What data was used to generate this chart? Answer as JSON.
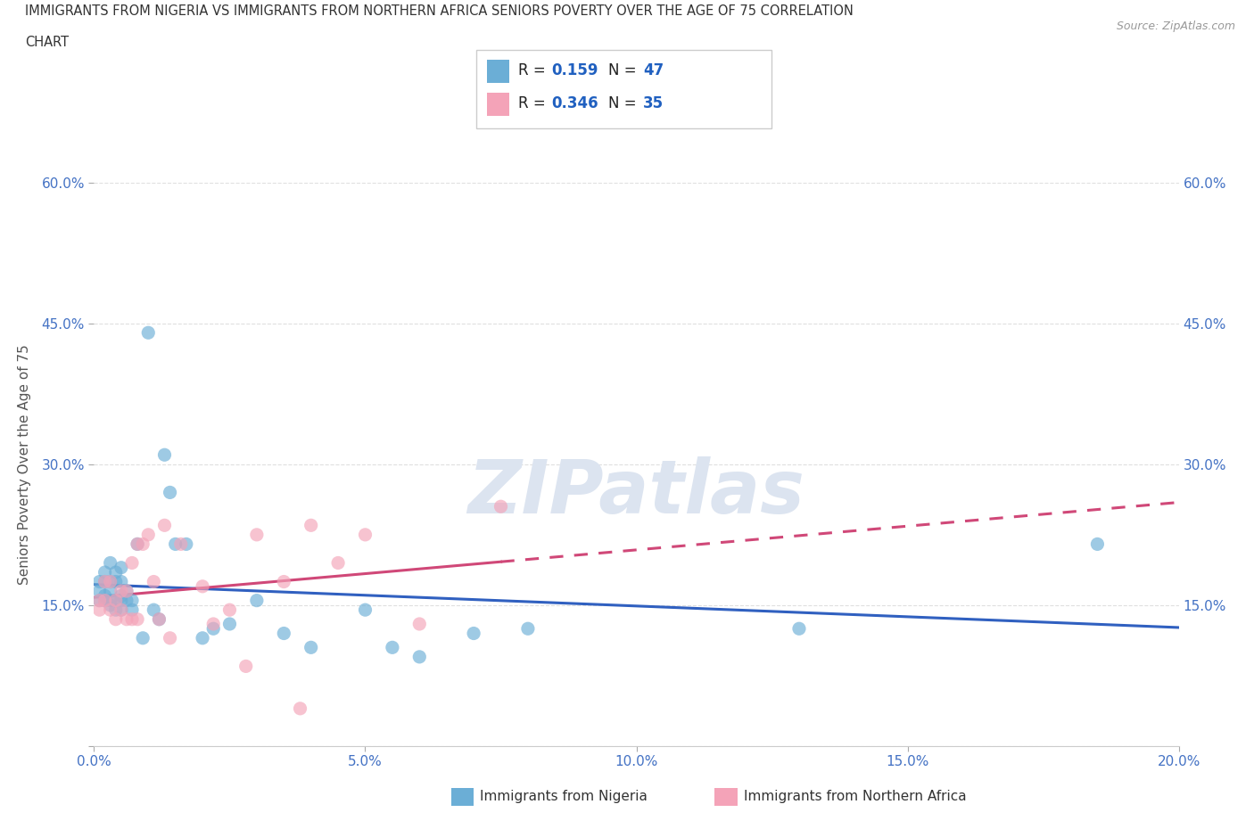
{
  "title_line1": "IMMIGRANTS FROM NIGERIA VS IMMIGRANTS FROM NORTHERN AFRICA SENIORS POVERTY OVER THE AGE OF 75 CORRELATION",
  "title_line2": "CHART",
  "source_text": "Source: ZipAtlas.com",
  "ylabel": "Seniors Poverty Over the Age of 75",
  "r_nigeria": 0.159,
  "n_nigeria": 47,
  "r_n_africa": 0.346,
  "n_n_africa": 35,
  "color_nigeria": "#6baed6",
  "color_n_africa": "#f4a3b8",
  "trend_color_nigeria": "#3060c0",
  "trend_color_n_africa": "#d04878",
  "xlim": [
    0.0,
    0.2
  ],
  "ylim": [
    0.0,
    0.6
  ],
  "xticks": [
    0.0,
    0.05,
    0.1,
    0.15,
    0.2
  ],
  "yticks": [
    0.0,
    0.15,
    0.3,
    0.45,
    0.6
  ],
  "xticklabels": [
    "0.0%",
    "5.0%",
    "10.0%",
    "15.0%",
    "20.0%"
  ],
  "yticklabels_left": [
    "",
    "15.0%",
    "30.0%",
    "45.0%",
    "60.0%"
  ],
  "yticklabels_right": [
    "",
    "15.0%",
    "30.0%",
    "45.0%",
    "60.0%"
  ],
  "watermark": "ZIPatlas",
  "nigeria_x": [
    0.001,
    0.001,
    0.001,
    0.002,
    0.002,
    0.002,
    0.002,
    0.003,
    0.003,
    0.003,
    0.003,
    0.003,
    0.004,
    0.004,
    0.004,
    0.004,
    0.005,
    0.005,
    0.005,
    0.005,
    0.005,
    0.006,
    0.006,
    0.007,
    0.007,
    0.008,
    0.009,
    0.01,
    0.011,
    0.012,
    0.013,
    0.014,
    0.015,
    0.017,
    0.02,
    0.022,
    0.025,
    0.03,
    0.035,
    0.04,
    0.05,
    0.055,
    0.06,
    0.07,
    0.08,
    0.13,
    0.185
  ],
  "nigeria_y": [
    0.155,
    0.165,
    0.175,
    0.155,
    0.16,
    0.175,
    0.185,
    0.15,
    0.155,
    0.165,
    0.175,
    0.195,
    0.145,
    0.155,
    0.175,
    0.185,
    0.145,
    0.155,
    0.16,
    0.175,
    0.19,
    0.155,
    0.165,
    0.145,
    0.155,
    0.215,
    0.115,
    0.44,
    0.145,
    0.135,
    0.31,
    0.27,
    0.215,
    0.215,
    0.115,
    0.125,
    0.13,
    0.155,
    0.12,
    0.105,
    0.145,
    0.105,
    0.095,
    0.12,
    0.125,
    0.125,
    0.215
  ],
  "n_africa_x": [
    0.001,
    0.001,
    0.002,
    0.002,
    0.003,
    0.003,
    0.004,
    0.004,
    0.005,
    0.005,
    0.006,
    0.006,
    0.007,
    0.007,
    0.008,
    0.008,
    0.009,
    0.01,
    0.011,
    0.012,
    0.013,
    0.014,
    0.016,
    0.02,
    0.022,
    0.025,
    0.028,
    0.03,
    0.035,
    0.038,
    0.04,
    0.045,
    0.05,
    0.06,
    0.075
  ],
  "n_africa_y": [
    0.145,
    0.155,
    0.155,
    0.175,
    0.145,
    0.175,
    0.135,
    0.155,
    0.145,
    0.165,
    0.135,
    0.165,
    0.135,
    0.195,
    0.135,
    0.215,
    0.215,
    0.225,
    0.175,
    0.135,
    0.235,
    0.115,
    0.215,
    0.17,
    0.13,
    0.145,
    0.085,
    0.225,
    0.175,
    0.04,
    0.235,
    0.195,
    0.225,
    0.13,
    0.255
  ],
  "bg_color": "#ffffff",
  "grid_color": "#d8d8d8",
  "title_color": "#333333",
  "axis_label_color": "#555555",
  "tick_color": "#4472c4",
  "watermark_color": "#dce4f0",
  "legend_r_color": "#2060c0",
  "legend_n_color": "#2060c0"
}
